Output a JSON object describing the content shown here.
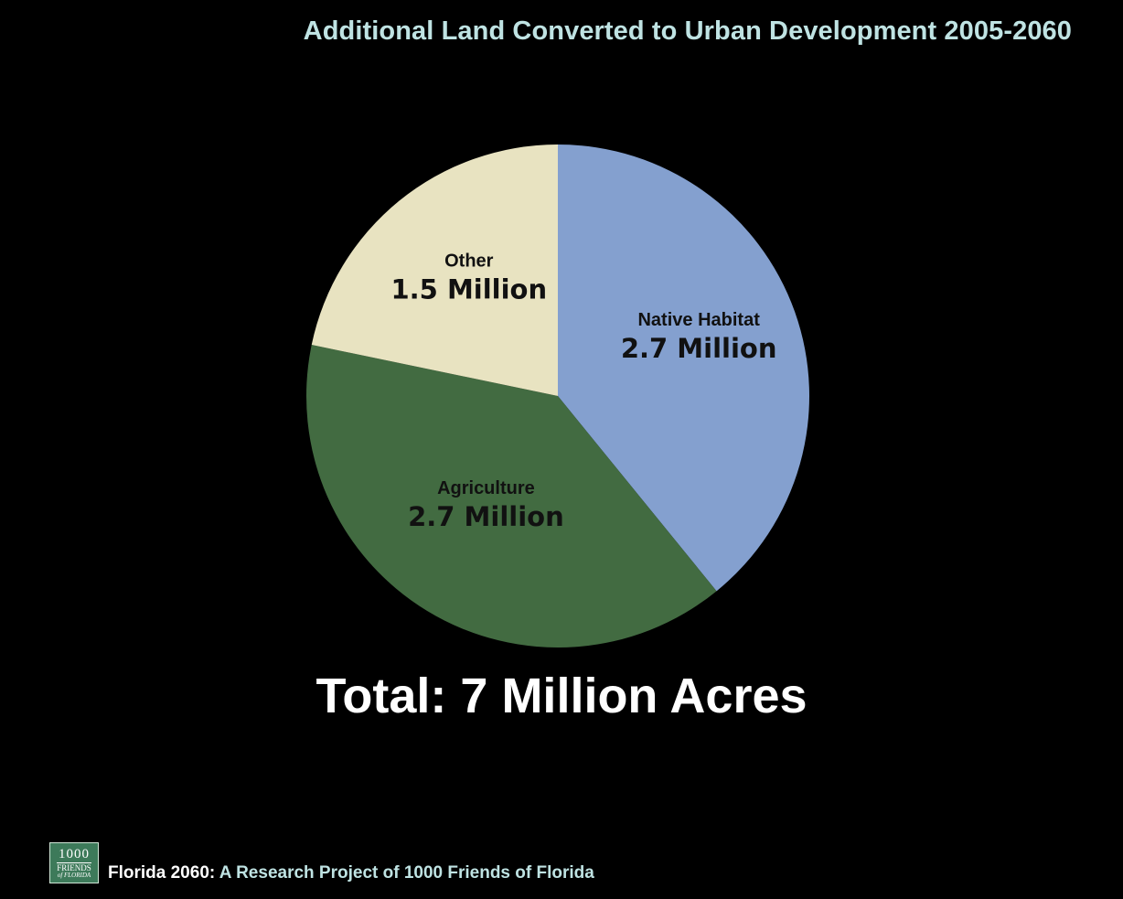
{
  "title": "Additional Land Converted to Urban Development 2005-2060",
  "total_label": "Total: 7 Million Acres",
  "footer": {
    "lead": "Florida 2060:",
    "rest": " A Research Project of 1000 Friends of Florida",
    "logo_lines": [
      "1000",
      "FRIENDS",
      "of FLORIDA"
    ]
  },
  "colors": {
    "background": "#000000",
    "title": "#bfe3e3",
    "native_habitat": "#84a0cf",
    "agriculture": "#426b41",
    "other": "#e8e3c1",
    "label_text": "#111111"
  },
  "chart_data": {
    "type": "pie",
    "title": "Additional Land Converted to Urban Development 2005-2060",
    "unit": "Million",
    "start_angle_deg": 0,
    "direction": "clockwise",
    "slices": [
      {
        "name": "Native Habitat",
        "value": 2.7,
        "value_label": "2.7 Million",
        "color": "#84a0cf"
      },
      {
        "name": "Agriculture",
        "value": 2.7,
        "value_label": "2.7 Million",
        "color": "#426b41"
      },
      {
        "name": "Other",
        "value": 1.5,
        "value_label": "1.5 Million",
        "color": "#e8e3c1"
      }
    ],
    "legend": "none",
    "grid": false
  }
}
